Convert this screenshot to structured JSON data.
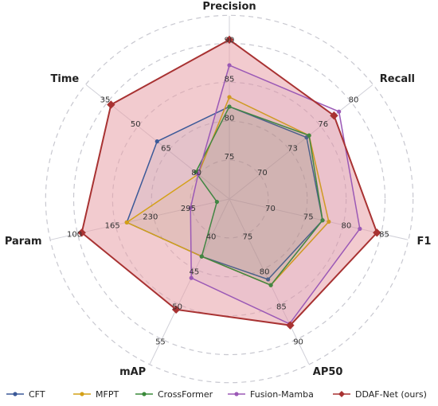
{
  "chart_data": {
    "type": "radar",
    "title": "",
    "axes": [
      {
        "name": "Precision",
        "ticks": [
          "75",
          "80",
          "85",
          "90"
        ]
      },
      {
        "name": "Recall",
        "ticks": [
          "70",
          "73",
          "76",
          "80"
        ]
      },
      {
        "name": "F1",
        "ticks": [
          "70",
          "75",
          "80",
          "85"
        ]
      },
      {
        "name": "AP50",
        "ticks": [
          "75",
          "80",
          "85",
          "90"
        ]
      },
      {
        "name": "mAP",
        "ticks": [
          "40",
          "45",
          "50",
          "55"
        ]
      },
      {
        "name": "Param",
        "ticks": [
          "295",
          "230",
          "165",
          "100"
        ]
      },
      {
        "name": "Time",
        "ticks": [
          "80",
          "65",
          "50",
          "35"
        ]
      }
    ],
    "radial_fractions_note_units": "normalized score 0-1 per axis",
    "series": [
      {
        "name": "CFT",
        "color": "#3b5998",
        "marker": "circle",
        "values": [
          0.58,
          0.62,
          0.6,
          0.56,
          0.4,
          0.66,
          0.58
        ]
      },
      {
        "name": "MFPT",
        "color": "#d4a017",
        "marker": "circle",
        "values": [
          0.64,
          0.64,
          0.64,
          0.6,
          0.4,
          0.66,
          0.25
        ]
      },
      {
        "name": "CrossFormer",
        "color": "#3a8a3a",
        "marker": "circle",
        "values": [
          0.58,
          0.64,
          0.6,
          0.6,
          0.4,
          0.08,
          0.27
        ]
      },
      {
        "name": "Fusion-Mamba",
        "color": "#9b59b6",
        "marker": "circle",
        "values": [
          0.84,
          0.88,
          0.84,
          0.87,
          0.55,
          0.25,
          0.25
        ]
      },
      {
        "name": "DDAF-Net (ours)",
        "color": "#a83232",
        "marker": "diamond",
        "values": [
          1.0,
          0.84,
          0.95,
          0.88,
          0.77,
          0.95,
          0.95
        ]
      }
    ],
    "grid": true,
    "legend_position": "bottom",
    "fill_color": "#e8a0a8"
  }
}
